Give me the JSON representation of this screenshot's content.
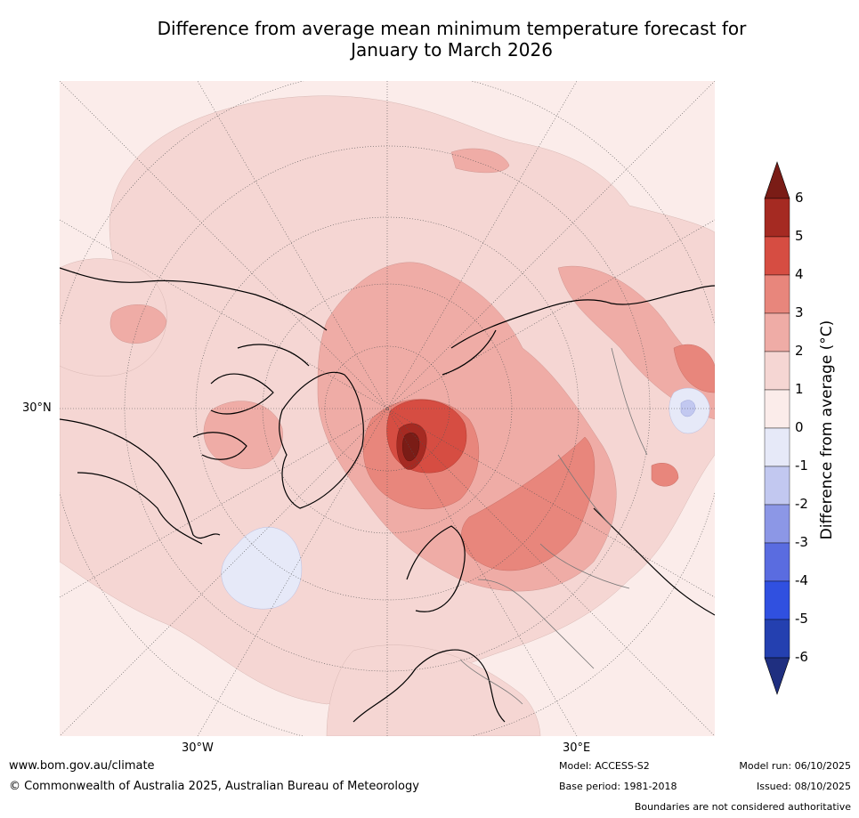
{
  "title_line1": "Difference from average mean minimum temperature forecast for",
  "title_line2": "January to March 2026",
  "map": {
    "projection": "North Polar Stereographic",
    "lat_label": "30°N",
    "lon_labels": [
      "30°W",
      "30°E"
    ]
  },
  "colorbar": {
    "label": "Difference from average (°C)",
    "ticks": [
      "6",
      "5",
      "4",
      "3",
      "2",
      "1",
      "0",
      "-1",
      "-2",
      "-3",
      "-4",
      "-5",
      "-6"
    ],
    "bins": [
      {
        "range": "above 6",
        "color": "#7a1c16"
      },
      {
        "range": "5 to 6",
        "color": "#a52a22"
      },
      {
        "range": "4 to 5",
        "color": "#d64d42"
      },
      {
        "range": "3 to 4",
        "color": "#e8867c"
      },
      {
        "range": "2 to 3",
        "color": "#efaca6"
      },
      {
        "range": "1 to 2",
        "color": "#f5d6d3"
      },
      {
        "range": "0 to 1",
        "color": "#fbecea"
      },
      {
        "range": "-1 to 0",
        "color": "#e6e9f8"
      },
      {
        "range": "-2 to -1",
        "color": "#c2c8f0"
      },
      {
        "range": "-3 to -2",
        "color": "#8c97e6"
      },
      {
        "range": "-4 to -3",
        "color": "#5a6ce0"
      },
      {
        "range": "-5 to -4",
        "color": "#3050e0"
      },
      {
        "range": "-6 to -5",
        "color": "#2440b0"
      },
      {
        "range": "below -6",
        "color": "#1f2f80"
      }
    ]
  },
  "footer": {
    "website": "www.bom.gov.au/climate",
    "copyright": "© Commonwealth of Australia 2025, Australian Bureau of Meteorology",
    "model": "Model: ACCESS-S2",
    "base_period": "Base period: 1981-2018",
    "model_run": "Model run: 06/10/2025",
    "issued": "Issued: 08/10/2025",
    "disclaimer": "Boundaries are not considered authoritative"
  }
}
